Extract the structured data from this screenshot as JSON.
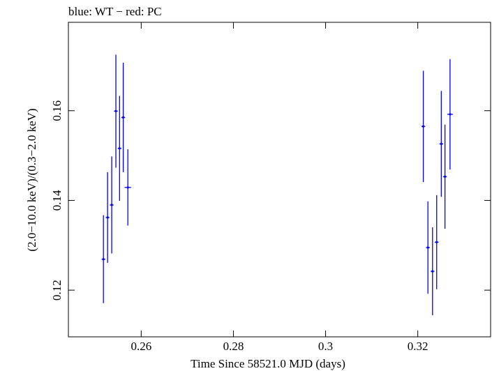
{
  "chart_data": {
    "type": "scatter",
    "title": "blue: WT − red: PC",
    "xlabel": "Time Since 58521.0 MJD (days)",
    "ylabel": "(2.0−10.0 keV)/(0.3−2.0 keV)",
    "xlim": [
      0.2442,
      0.3358
    ],
    "ylim": [
      0.1096,
      0.1797
    ],
    "x_ticks": [
      0.26,
      0.28,
      0.3,
      0.32
    ],
    "x_tick_labels": [
      "0.26",
      "0.28",
      "0.3",
      "0.32"
    ],
    "y_ticks": [
      0.12,
      0.14,
      0.16
    ],
    "y_tick_labels": [
      "0.12",
      "0.14",
      "0.16"
    ],
    "grid": false,
    "series": [
      {
        "color": "#0000ff",
        "points": [
          {
            "x": 0.2518,
            "y": 0.1269,
            "yerr": 0.0098,
            "xerr": 0.0004
          },
          {
            "x": 0.2527,
            "y": 0.1362,
            "yerr": 0.0101,
            "xerr": 0.0004
          },
          {
            "x": 0.2536,
            "y": 0.139,
            "yerr": 0.0108,
            "xerr": 0.0004
          },
          {
            "x": 0.2545,
            "y": 0.1599,
            "yerr": 0.0126,
            "xerr": 0.0004
          },
          {
            "x": 0.2553,
            "y": 0.1516,
            "yerr": 0.0117,
            "xerr": 0.0004
          },
          {
            "x": 0.2561,
            "y": 0.1585,
            "yerr": 0.0122,
            "xerr": 0.0004
          },
          {
            "x": 0.2571,
            "y": 0.1429,
            "yerr": 0.0085,
            "xerr": 0.0007
          },
          {
            "x": 0.3212,
            "y": 0.1565,
            "yerr": 0.0124,
            "xerr": 0.0004
          },
          {
            "x": 0.3222,
            "y": 0.1295,
            "yerr": 0.0103,
            "xerr": 0.0004
          },
          {
            "x": 0.3232,
            "y": 0.1242,
            "yerr": 0.0098,
            "xerr": 0.0004
          },
          {
            "x": 0.3241,
            "y": 0.1307,
            "yerr": 0.0105,
            "xerr": 0.0004
          },
          {
            "x": 0.3251,
            "y": 0.1526,
            "yerr": 0.0118,
            "xerr": 0.0004
          },
          {
            "x": 0.3259,
            "y": 0.1453,
            "yerr": 0.0116,
            "xerr": 0.0004
          },
          {
            "x": 0.327,
            "y": 0.1592,
            "yerr": 0.0123,
            "xerr": 0.0006
          }
        ]
      }
    ]
  }
}
